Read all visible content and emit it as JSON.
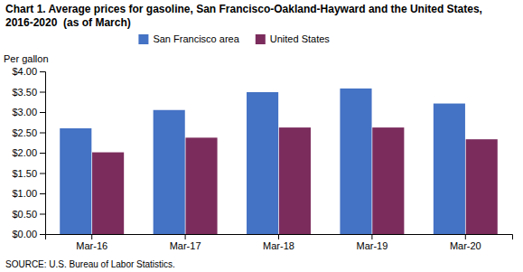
{
  "chart_data": {
    "type": "bar",
    "title": "Chart 1. Average prices for gasoline, San Francisco-Oakland-Hayward and the United States, 2016-2020  (as of March)",
    "ylabel": "Per gallon",
    "source": "SOURCE: U.S. Bureau of Labor Statistics.",
    "categories": [
      "Mar-16",
      "Mar-17",
      "Mar-18",
      "Mar-19",
      "Mar-20"
    ],
    "series": [
      {
        "name": "San Francisco area",
        "color": "#4472C4",
        "values": [
          2.6,
          3.05,
          3.49,
          3.58,
          3.21
        ]
      },
      {
        "name": "United States",
        "color": "#7B2C5D",
        "values": [
          2.01,
          2.37,
          2.62,
          2.62,
          2.33
        ]
      }
    ],
    "ylim": [
      0.0,
      4.0
    ],
    "yticks": [
      {
        "value": 0.0,
        "label": "$0.00"
      },
      {
        "value": 0.5,
        "label": "$0.50"
      },
      {
        "value": 1.0,
        "label": "$1.00"
      },
      {
        "value": 1.5,
        "label": "$1.50"
      },
      {
        "value": 2.0,
        "label": "$2.00"
      },
      {
        "value": 2.5,
        "label": "$2.50"
      },
      {
        "value": 3.0,
        "label": "$3.00"
      },
      {
        "value": 3.5,
        "label": "$3.50"
      },
      {
        "value": 4.0,
        "label": "$4.00"
      }
    ],
    "grid": false,
    "legend": "upper left"
  }
}
